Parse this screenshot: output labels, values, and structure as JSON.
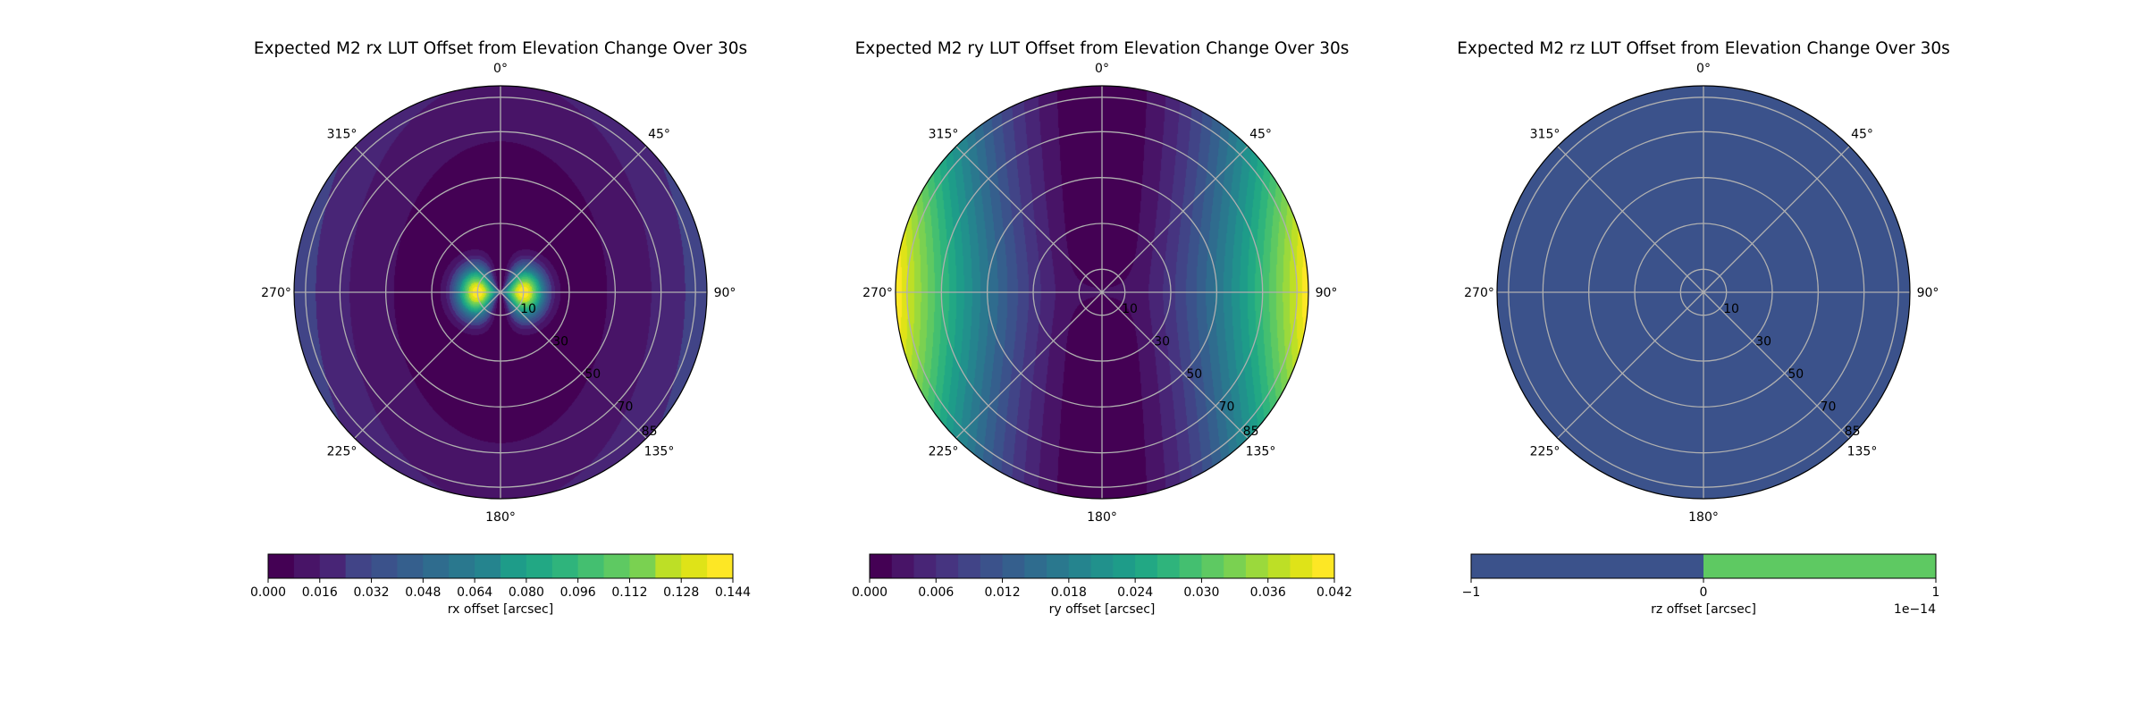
{
  "chart_data": [
    {
      "type": "polar-contour",
      "title": "Expected M2 rx LUT Offset from Elevation Change Over 30s",
      "theta_zero": "north",
      "theta_direction": "clockwise",
      "theta_ticks": [
        "0°",
        "45°",
        "90°",
        "135°",
        "180°",
        "225°",
        "270°",
        "315°"
      ],
      "r_ticks": [
        "10",
        "30",
        "50",
        "70",
        "85"
      ],
      "r_tick_values": [
        10,
        30,
        50,
        70,
        85
      ],
      "r_range": [
        0,
        90
      ],
      "grid": true,
      "field": "rx",
      "colorbar": {
        "label": "rx offset [arcsec]",
        "ticks": [
          "0.000",
          "0.016",
          "0.032",
          "0.048",
          "0.064",
          "0.080",
          "0.096",
          "0.112",
          "0.128",
          "0.144"
        ],
        "range": [
          0,
          0.144
        ],
        "levels": 18,
        "offset_text": "",
        "placement": "bottom"
      },
      "colors": [
        "#440154",
        "#481467",
        "#482576",
        "#463480",
        "#414487",
        "#3b528b",
        "#355f8d",
        "#2f6c8e",
        "#2a788e",
        "#25848e",
        "#21918c",
        "#1e9c89",
        "#22a884",
        "#2fb47c",
        "#44bf70",
        "#5ec962",
        "#7ad151",
        "#9bd93c",
        "#bddf26",
        "#dfe318",
        "#fde725"
      ]
    },
    {
      "type": "polar-contour",
      "title": "Expected M2 ry LUT Offset from Elevation Change Over 30s",
      "theta_zero": "north",
      "theta_direction": "clockwise",
      "theta_ticks": [
        "0°",
        "45°",
        "90°",
        "135°",
        "180°",
        "225°",
        "270°",
        "315°"
      ],
      "r_ticks": [
        "10",
        "30",
        "50",
        "70",
        "85"
      ],
      "r_tick_values": [
        10,
        30,
        50,
        70,
        85
      ],
      "r_range": [
        0,
        90
      ],
      "grid": true,
      "field": "ry",
      "colorbar": {
        "label": "ry offset [arcsec]",
        "ticks": [
          "0.000",
          "0.006",
          "0.012",
          "0.018",
          "0.024",
          "0.030",
          "0.036",
          "0.042"
        ],
        "range": [
          0,
          0.042
        ],
        "levels": 21,
        "offset_text": "",
        "placement": "bottom"
      },
      "colors": [
        "#440154",
        "#481467",
        "#482576",
        "#463480",
        "#414487",
        "#3b528b",
        "#355f8d",
        "#2f6c8e",
        "#2a788e",
        "#25848e",
        "#21918c",
        "#1e9c89",
        "#22a884",
        "#2fb47c",
        "#44bf70",
        "#5ec962",
        "#7ad151",
        "#9bd93c",
        "#bddf26",
        "#dfe318",
        "#fde725"
      ]
    },
    {
      "type": "polar-contour",
      "title": "Expected M2 rz LUT Offset from Elevation Change Over 30s",
      "theta_zero": "north",
      "theta_direction": "clockwise",
      "theta_ticks": [
        "0°",
        "45°",
        "90°",
        "135°",
        "180°",
        "225°",
        "270°",
        "315°"
      ],
      "r_ticks": [
        "10",
        "30",
        "50",
        "70",
        "85"
      ],
      "r_tick_values": [
        10,
        30,
        50,
        70,
        85
      ],
      "r_range": [
        0,
        90
      ],
      "grid": true,
      "field": "rz",
      "fill_color": "#3b528b",
      "colorbar": {
        "label": "rz offset [arcsec]",
        "ticks": [
          "−1",
          "0",
          "1"
        ],
        "range": [
          -1,
          1
        ],
        "levels": 2,
        "segment_colors": [
          "#3b528b",
          "#5ec962"
        ],
        "offset_text": "1e−14",
        "placement": "bottom"
      }
    }
  ]
}
